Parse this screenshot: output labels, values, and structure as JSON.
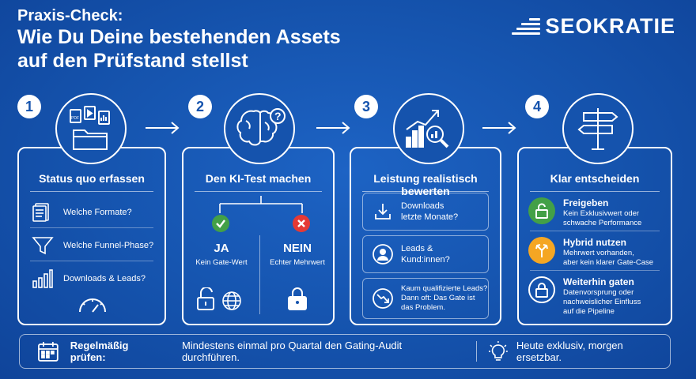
{
  "header": {
    "kicker": "Praxis-Check:",
    "title_line1": "Wie Du Deine bestehenden Assets",
    "title_line2": "auf den Prüfstand stellst"
  },
  "brand": {
    "logo_text": "SEOKRATIE"
  },
  "colors": {
    "background": "#1553ad",
    "green": "#43a047",
    "red": "#e53935",
    "amber": "#f5a623"
  },
  "steps": [
    {
      "number": "1",
      "icon": "documents-folder-icon",
      "title": "Status quo erfassen",
      "items": [
        {
          "icon": "document-icon",
          "label": "Welche Formate?"
        },
        {
          "icon": "funnel-icon",
          "label": "Welche Funnel-Phase?"
        },
        {
          "icon": "bar-chart-icon",
          "label": "Downloads & Leads?"
        }
      ],
      "footer_icon": "gauge-icon"
    },
    {
      "number": "2",
      "icon": "brain-question-icon",
      "title": "Den KI-Test machen",
      "yes": {
        "heading": "JA",
        "sub": "Kein Gate-Wert",
        "icon": "check-icon"
      },
      "no": {
        "heading": "NEIN",
        "sub": "Echter Mehrwert",
        "icon": "cross-icon"
      }
    },
    {
      "number": "3",
      "icon": "chart-magnifier-icon",
      "title": "Leistung realistisch bewerten",
      "items": [
        {
          "icon": "download-icon",
          "line1": "Downloads",
          "line2": "letzte Monate?"
        },
        {
          "icon": "user-icon",
          "line1": "Leads &",
          "line2": "Kund:innen?"
        },
        {
          "icon": "trend-down-icon",
          "line1": "Kaum qualifizierte Leads?",
          "line2": "Dann oft: Das Gate ist",
          "line3": "das Problem."
        }
      ]
    },
    {
      "number": "4",
      "icon": "signpost-icon",
      "title": "Klar entscheiden",
      "options": [
        {
          "icon": "unlock-icon",
          "title": "Freigeben",
          "line1": "Kein Exklusivwert oder",
          "line2": "schwache Performance"
        },
        {
          "icon": "split-arrows-icon",
          "title": "Hybrid nutzen",
          "line1": "Mehrwert vorhanden,",
          "line2": "aber kein klarer Gate-Case"
        },
        {
          "icon": "lock-icon",
          "title": "Weiterhin gaten",
          "line1": "Datenvorsprung oder",
          "line2": "nachweislicher Einfluss",
          "line3": "auf die Pipeline"
        }
      ]
    }
  ],
  "footer": {
    "bold": "Regelmäßig prüfen:",
    "text": "Mindestens einmal pro Quartal den Gating-Audit durchführen.",
    "tip": "Heute exklusiv, morgen ersetzbar."
  }
}
